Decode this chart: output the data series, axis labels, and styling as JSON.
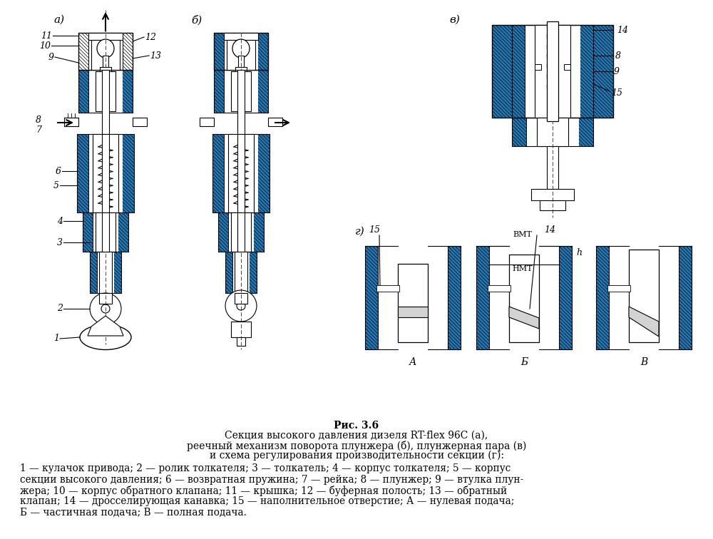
{
  "title": "Рис. 3.6",
  "subtitle_lines": [
    "Секция высокого давления дизеля RT-flex 96C (а),",
    "реечный механизм поворота плунжера (б), плунжерная пара (в)",
    "и схема регулирования производительности секции (г):"
  ],
  "caption_lines": [
    "1 — кулачок привода; 2 — ролик толкателя; 3 — толкатель; 4 — корпус толкателя; 5 — корпус",
    "секции высокого давления; 6 — возвратная пружина; 7 — рейка; 8 — плунжер; 9 — втулка плун-",
    "жера; 10 — корпус обратного клапана; 11 — крышка; 12 — буферная полость; 13 — обратный",
    "клапан; 14 — дросселирующая канавка; 15 — наполнительное отверстие; А — нулевая подача;",
    "Б — частичная подача; В — полная подача."
  ],
  "bg_color": "#ffffff",
  "text_color": "#000000",
  "title_fontsize": 10,
  "subtitle_fontsize": 10,
  "caption_fontsize": 9.8,
  "fig_width": 10.0,
  "fig_height": 7.56,
  "drawing_region": [
    0,
    0,
    1000,
    578
  ],
  "caption_region": [
    0,
    578,
    1000,
    178
  ]
}
